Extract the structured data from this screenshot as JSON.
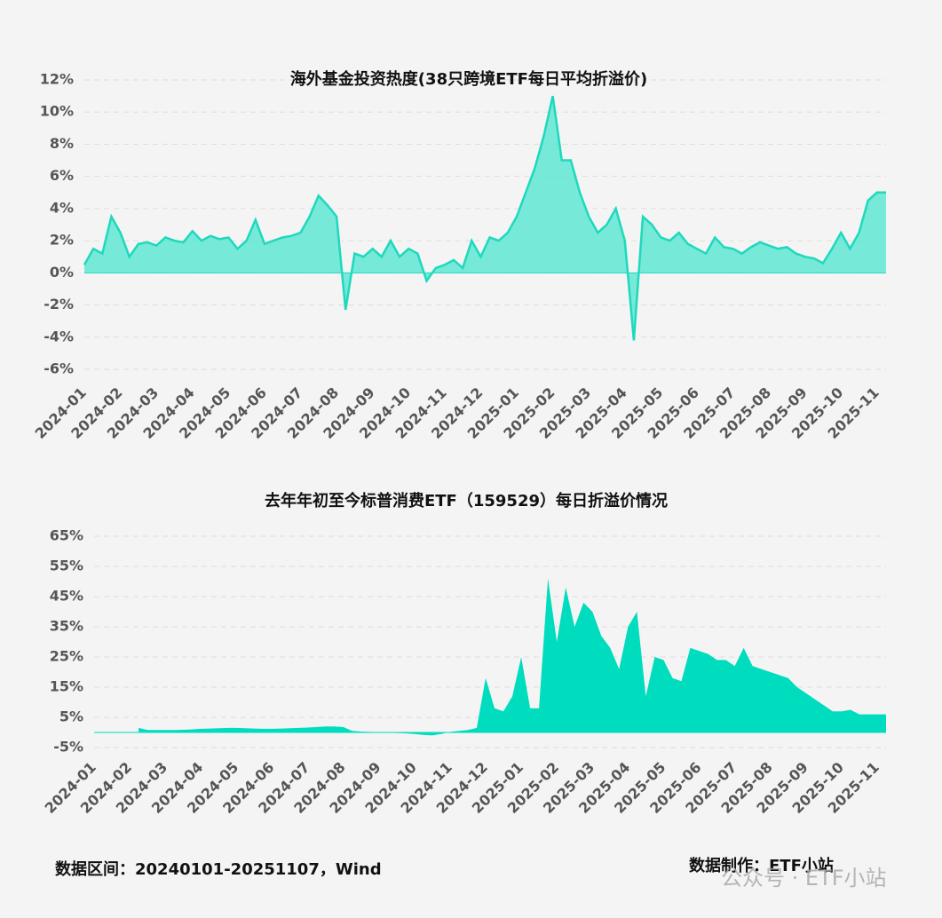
{
  "chart_data": [
    {
      "type": "area",
      "title": "海外基金投资热度(38只跨境ETF每日平均折溢价)",
      "color": "#5fe6d3",
      "line_color": "#1ed9bd",
      "grid": true,
      "categories": [
        "2024-01",
        null,
        null,
        null,
        "2024-02",
        null,
        null,
        null,
        "2024-03",
        null,
        null,
        null,
        "2024-04",
        null,
        null,
        null,
        "2024-05",
        null,
        null,
        null,
        "2024-06",
        null,
        null,
        null,
        "2024-07",
        null,
        null,
        null,
        "2024-08",
        null,
        null,
        null,
        "2024-09",
        null,
        null,
        null,
        "2024-10",
        null,
        null,
        null,
        "2024-11",
        null,
        null,
        null,
        "2024-12",
        null,
        null,
        null,
        "2025-01",
        null,
        null,
        null,
        "2025-02",
        null,
        null,
        null,
        "2025-03",
        null,
        null,
        null,
        "2025-04",
        null,
        null,
        null,
        "2025-05",
        null,
        null,
        null,
        "2025-06",
        null,
        null,
        null,
        "2025-07",
        null,
        null,
        null,
        "2025-08",
        null,
        null,
        null,
        "2025-09",
        null,
        null,
        null,
        "2025-10",
        null,
        null,
        null,
        "2025-11",
        null
      ],
      "values": [
        0.5,
        1.5,
        1.2,
        3.5,
        2.5,
        1.0,
        1.8,
        1.9,
        1.7,
        2.2,
        2.0,
        1.9,
        2.6,
        2.0,
        2.3,
        2.1,
        2.2,
        1.5,
        2.0,
        3.3,
        1.8,
        2.0,
        2.2,
        2.3,
        2.5,
        3.5,
        4.8,
        4.2,
        3.5,
        -2.3,
        1.2,
        1.0,
        1.5,
        1.0,
        2.0,
        1.0,
        1.5,
        1.2,
        -0.5,
        0.3,
        0.5,
        0.8,
        0.3,
        2.0,
        1.0,
        2.2,
        2.0,
        2.5,
        3.5,
        5.0,
        6.5,
        8.5,
        11.0,
        7.0,
        7.0,
        5.0,
        3.5,
        2.5,
        3.0,
        4.0,
        2.0,
        -4.2,
        3.5,
        3.0,
        2.2,
        2.0,
        2.5,
        1.8,
        1.5,
        1.2,
        2.2,
        1.6,
        1.5,
        1.2,
        1.6,
        1.9,
        1.7,
        1.5,
        1.6,
        1.2,
        1.0,
        0.9,
        0.6,
        1.5,
        2.5,
        1.5,
        2.5,
        4.5,
        5.0,
        5.0
      ],
      "ylim": [
        -6,
        12
      ],
      "yticks": [
        {
          "value": -6,
          "label": "-6%"
        },
        {
          "value": -4,
          "label": "-4%"
        },
        {
          "value": -2,
          "label": "-2%"
        },
        {
          "value": 0,
          "label": "0%"
        },
        {
          "value": 2,
          "label": "2%"
        },
        {
          "value": 4,
          "label": "4%"
        },
        {
          "value": 6,
          "label": "6%"
        },
        {
          "value": 8,
          "label": "8%"
        },
        {
          "value": 10,
          "label": "10%"
        },
        {
          "value": 12,
          "label": "12%"
        }
      ]
    },
    {
      "type": "area",
      "title": "去年年初至今标普消费ETF（159529）每日折溢价情况",
      "color": "#00dcbe",
      "grid": true,
      "categories": [
        "2024-01",
        null,
        null,
        null,
        "2024-02",
        null,
        null,
        null,
        "2024-03",
        null,
        null,
        null,
        "2024-04",
        null,
        null,
        null,
        "2024-05",
        null,
        null,
        null,
        "2024-06",
        null,
        null,
        null,
        "2024-07",
        null,
        null,
        null,
        "2024-08",
        null,
        null,
        null,
        "2024-09",
        null,
        null,
        null,
        "2024-10",
        null,
        null,
        null,
        "2024-11",
        null,
        null,
        null,
        "2024-12",
        null,
        null,
        null,
        "2025-01",
        null,
        null,
        null,
        "2025-02",
        null,
        null,
        null,
        "2025-03",
        null,
        null,
        null,
        "2025-04",
        null,
        null,
        null,
        "2025-05",
        null,
        null,
        null,
        "2025-06",
        null,
        null,
        null,
        "2025-07",
        null,
        null,
        null,
        "2025-08",
        null,
        null,
        null,
        "2025-09",
        null,
        null,
        null,
        "2025-10",
        null,
        null,
        null,
        "2025-11",
        null
      ],
      "values": [
        null,
        null,
        null,
        null,
        null,
        1.5,
        0.8,
        0.8,
        0.8,
        0.8,
        0.9,
        1.0,
        1.2,
        1.3,
        1.4,
        1.5,
        1.5,
        1.4,
        1.3,
        1.2,
        1.2,
        1.3,
        1.4,
        1.5,
        1.6,
        1.8,
        2.0,
        2.0,
        1.8,
        0.5,
        0.3,
        0.2,
        0.1,
        0,
        -0.2,
        -0.3,
        -0.5,
        -0.8,
        -1.0,
        -0.5,
        0.2,
        0.5,
        0.8,
        1.5,
        18,
        8,
        7,
        12,
        25,
        8,
        8,
        51,
        30,
        48,
        35,
        43,
        40,
        32,
        28,
        21,
        35,
        40,
        12,
        25,
        24,
        18,
        17,
        28,
        27,
        26,
        24,
        24,
        22,
        28,
        22,
        21,
        20,
        19,
        18,
        15,
        13,
        11,
        9,
        7,
        7,
        7.5,
        6,
        6,
        6,
        6
      ],
      "ylim": [
        -5,
        65
      ],
      "yticks": [
        {
          "value": -5,
          "label": "-5%"
        },
        {
          "value": 5,
          "label": "5%"
        },
        {
          "value": 15,
          "label": "15%"
        },
        {
          "value": 25,
          "label": "25%"
        },
        {
          "value": 35,
          "label": "35%"
        },
        {
          "value": 45,
          "label": "45%"
        },
        {
          "value": 55,
          "label": "55%"
        },
        {
          "value": 65,
          "label": "65%"
        }
      ]
    }
  ],
  "footer": {
    "left": "数据区间：20240101-20251107，Wind",
    "right": "数据制作：ETF小站"
  },
  "watermark": "公众号 · ETF小站"
}
